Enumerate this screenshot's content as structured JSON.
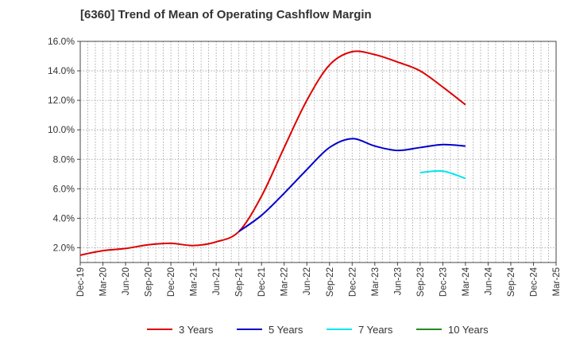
{
  "chart_data": {
    "type": "line",
    "title": "[6360]  Trend of Mean of Operating Cashflow Margin",
    "xlabel": "",
    "ylabel": "",
    "x_tick_labels": [
      "Dec-19",
      "Mar-20",
      "Jun-20",
      "Sep-20",
      "Dec-20",
      "Mar-21",
      "Jun-21",
      "Sep-21",
      "Dec-21",
      "Mar-22",
      "Jun-22",
      "Sep-22",
      "Dec-22",
      "Mar-23",
      "Jun-23",
      "Sep-23",
      "Dec-23",
      "Mar-24",
      "Jun-24",
      "Sep-24",
      "Dec-24",
      "Mar-25"
    ],
    "y_tick_labels": [
      "2.0%",
      "4.0%",
      "6.0%",
      "8.0%",
      "10.0%",
      "12.0%",
      "14.0%",
      "16.0%"
    ],
    "ylim": [
      1.0,
      16.0
    ],
    "grid": true,
    "legend_position": "bottom",
    "series": [
      {
        "name": "3 Years",
        "color": "#dd0000",
        "values": [
          1.5,
          1.8,
          1.95,
          2.2,
          2.3,
          2.15,
          2.4,
          3.1,
          5.5,
          8.8,
          12.0,
          14.4,
          15.3,
          15.1,
          14.6,
          14.0,
          12.9,
          11.7,
          null,
          null,
          null,
          null
        ]
      },
      {
        "name": "5 Years",
        "color": "#0000cc",
        "values": [
          null,
          null,
          null,
          null,
          null,
          null,
          null,
          3.1,
          4.2,
          5.7,
          7.3,
          8.8,
          9.4,
          8.9,
          8.6,
          8.8,
          9.0,
          8.9,
          null,
          null,
          null,
          null
        ]
      },
      {
        "name": "7 Years",
        "color": "#00e5ee",
        "values": [
          null,
          null,
          null,
          null,
          null,
          null,
          null,
          null,
          null,
          null,
          null,
          null,
          null,
          null,
          null,
          7.1,
          7.2,
          6.7,
          null,
          null,
          null,
          null
        ]
      },
      {
        "name": "10 Years",
        "color": "#228b22",
        "values": [
          null,
          null,
          null,
          null,
          null,
          null,
          null,
          null,
          null,
          null,
          null,
          null,
          null,
          null,
          null,
          null,
          null,
          null,
          null,
          null,
          null,
          null
        ]
      }
    ]
  }
}
